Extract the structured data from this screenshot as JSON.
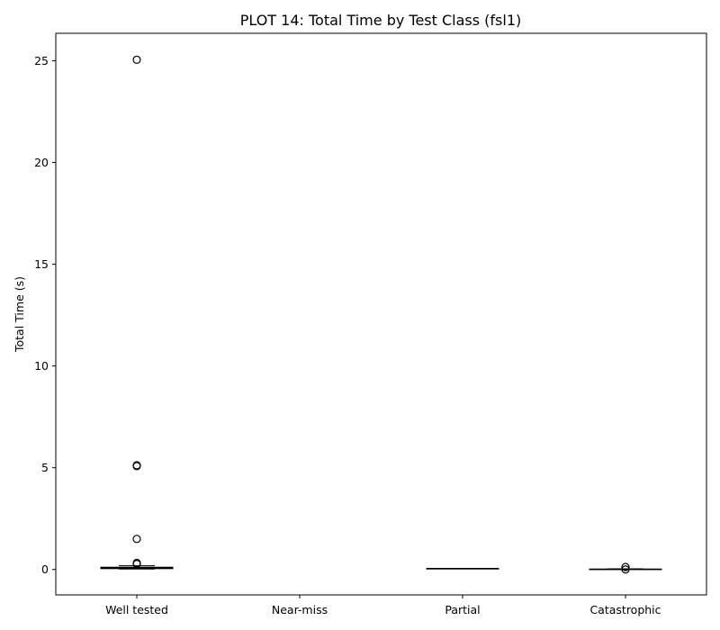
{
  "chart_data": {
    "type": "box",
    "title": "PLOT 14: Total Time by Test Class (fsl1)",
    "xlabel": "",
    "ylabel": "Total Time (s)",
    "ylim": [
      -1.25,
      26.35
    ],
    "yticks": [
      0,
      5,
      10,
      15,
      20,
      25
    ],
    "grid": false,
    "categories": [
      "Well tested",
      "Near-miss",
      "Partial",
      "Catastrophic"
    ],
    "boxes": [
      {
        "category": "Well tested",
        "whisker_low": 0.02,
        "q1": 0.04,
        "median": 0.07,
        "q3": 0.11,
        "whisker_high": 0.18,
        "outliers": [
          25.05,
          5.12,
          5.08,
          1.5,
          0.32,
          0.27
        ]
      },
      {
        "category": "Near-miss",
        "empty": true
      },
      {
        "category": "Partial",
        "whisker_low": 0.05,
        "q1": 0.05,
        "median": 0.05,
        "q3": 0.05,
        "whisker_high": 0.05,
        "outliers": []
      },
      {
        "category": "Catastrophic",
        "whisker_low": 0.01,
        "q1": 0.01,
        "median": 0.01,
        "q3": 0.02,
        "whisker_high": 0.03,
        "outliers": [
          0.12,
          0.0
        ]
      }
    ],
    "colors": {
      "box_edge": "#000000",
      "median": "#000000",
      "outlier_edge": "#000000"
    }
  }
}
